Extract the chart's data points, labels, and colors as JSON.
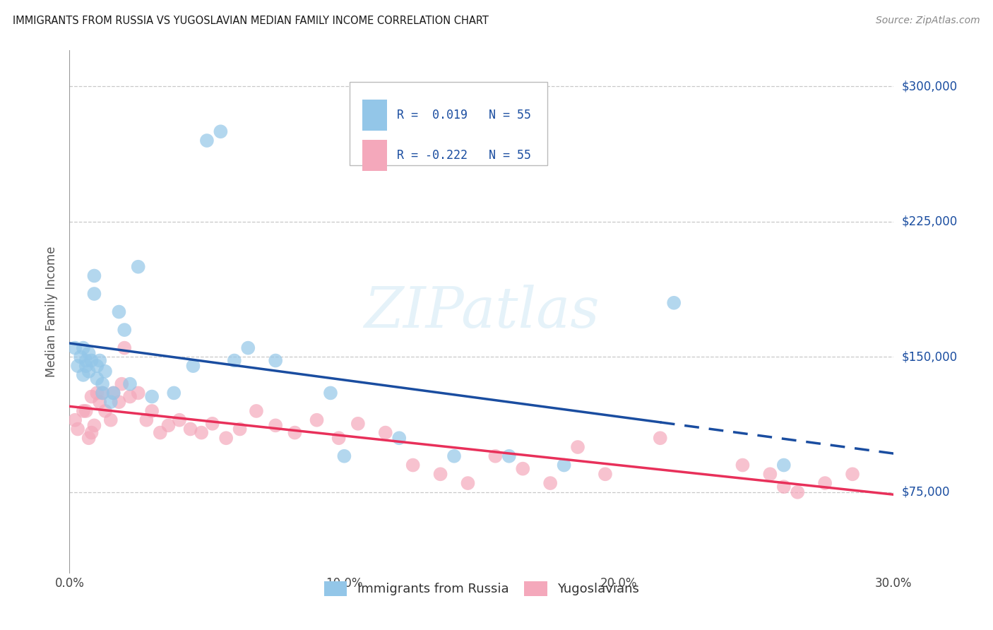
{
  "title": "IMMIGRANTS FROM RUSSIA VS YUGOSLAVIAN MEDIAN FAMILY INCOME CORRELATION CHART",
  "source": "Source: ZipAtlas.com",
  "ylabel": "Median Family Income",
  "xlim": [
    0.0,
    0.3
  ],
  "ylim": [
    30000,
    320000
  ],
  "yticks": [
    75000,
    150000,
    225000,
    300000
  ],
  "ytick_labels": [
    "$75,000",
    "$150,000",
    "$225,000",
    "$300,000"
  ],
  "xticks": [
    0.0,
    0.1,
    0.2,
    0.3
  ],
  "xtick_labels": [
    "0.0%",
    "10.0%",
    "20.0%",
    "30.0%"
  ],
  "background_color": "#ffffff",
  "grid_color": "#c8c8c8",
  "blue_color": "#93C6E8",
  "pink_color": "#F4A8BB",
  "trend_blue": "#1A4DA0",
  "trend_pink": "#E8305A",
  "watermark": "ZIPatlas",
  "legend_R_blue": "R =  0.019",
  "legend_R_pink": "R = -0.222",
  "legend_N": "N = 55",
  "series1_label": "Immigrants from Russia",
  "series2_label": "Yugoslavians",
  "blue_R": 0.019,
  "pink_R": -0.222,
  "blue_points_x": [
    0.002,
    0.003,
    0.004,
    0.005,
    0.005,
    0.006,
    0.006,
    0.007,
    0.007,
    0.008,
    0.009,
    0.009,
    0.01,
    0.01,
    0.011,
    0.012,
    0.012,
    0.013,
    0.015,
    0.016,
    0.018,
    0.02,
    0.022,
    0.025,
    0.03,
    0.038,
    0.045,
    0.05,
    0.055,
    0.06,
    0.065,
    0.075,
    0.095,
    0.1,
    0.12,
    0.14,
    0.16,
    0.18,
    0.22,
    0.26
  ],
  "blue_points_y": [
    155000,
    145000,
    150000,
    155000,
    140000,
    148000,
    145000,
    152000,
    142000,
    148000,
    185000,
    195000,
    145000,
    138000,
    148000,
    130000,
    135000,
    142000,
    125000,
    130000,
    175000,
    165000,
    135000,
    200000,
    128000,
    130000,
    145000,
    270000,
    275000,
    148000,
    155000,
    148000,
    130000,
    95000,
    105000,
    95000,
    95000,
    90000,
    180000,
    90000
  ],
  "pink_points_x": [
    0.002,
    0.003,
    0.005,
    0.007,
    0.008,
    0.009,
    0.01,
    0.011,
    0.013,
    0.015,
    0.016,
    0.018,
    0.02,
    0.022,
    0.025,
    0.028,
    0.03,
    0.033,
    0.036,
    0.04,
    0.044,
    0.048,
    0.052,
    0.057,
    0.062,
    0.068,
    0.075,
    0.082,
    0.09,
    0.098,
    0.105,
    0.115,
    0.125,
    0.135,
    0.145,
    0.155,
    0.165,
    0.175,
    0.185,
    0.195,
    0.215,
    0.245,
    0.255,
    0.265,
    0.275,
    0.285,
    0.006,
    0.008,
    0.012,
    0.019,
    0.26
  ],
  "pink_points_y": [
    115000,
    110000,
    120000,
    105000,
    108000,
    112000,
    130000,
    125000,
    120000,
    115000,
    130000,
    125000,
    155000,
    128000,
    130000,
    115000,
    120000,
    108000,
    112000,
    115000,
    110000,
    108000,
    113000,
    105000,
    110000,
    120000,
    112000,
    108000,
    115000,
    105000,
    113000,
    108000,
    90000,
    85000,
    80000,
    95000,
    88000,
    80000,
    100000,
    85000,
    105000,
    90000,
    85000,
    75000,
    80000,
    85000,
    120000,
    128000,
    130000,
    135000,
    78000
  ],
  "trend_blue_x_solid_end": 0.215,
  "trend_blue_x_dash_end": 0.3
}
